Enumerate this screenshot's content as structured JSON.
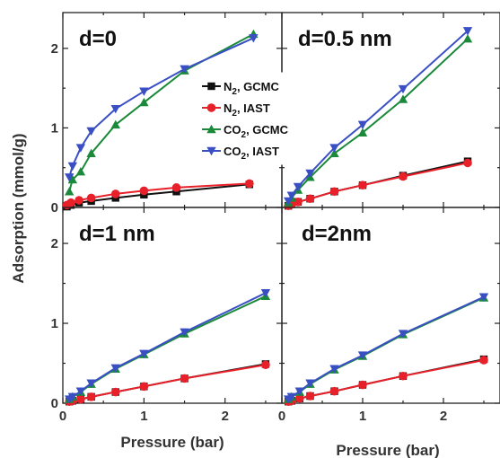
{
  "colors": {
    "n2_gcmc": "#111111",
    "n2_iast": "#e8202a",
    "co2_gcmc": "#1a8a3a",
    "co2_iast": "#3a4fc4"
  },
  "axes": {
    "xlabel": "Pressure (bar)",
    "ylabel": "Adsorption (mmol/g)",
    "x_ticks": [
      "0",
      "1",
      "2"
    ],
    "y_ticks": [
      "0",
      "1",
      "2"
    ]
  },
  "legend": {
    "entries": [
      {
        "species": "N",
        "sub": "2",
        "method": ", GCMC"
      },
      {
        "species": "N",
        "sub": "2",
        "method": ", IAST"
      },
      {
        "species": "CO",
        "sub": "2",
        "method": ", GCMC"
      },
      {
        "species": "CO",
        "sub": "2",
        "method": ", IAST"
      }
    ]
  },
  "chart_data": [
    {
      "type": "line",
      "panel_label": "d=0",
      "xlabel": "",
      "ylabel": "Adsorption (mmol/g)",
      "xlim": [
        0,
        2.7
      ],
      "ylim": [
        0,
        2.45
      ],
      "series": [
        {
          "name": "N2, GCMC",
          "marker": "square",
          "x": [
            0.05,
            0.1,
            0.2,
            0.35,
            0.65,
            1.0,
            1.4,
            2.3
          ],
          "y": [
            0.01,
            0.03,
            0.06,
            0.08,
            0.12,
            0.16,
            0.2,
            0.29
          ]
        },
        {
          "name": "N2, IAST",
          "marker": "circle",
          "x": [
            0.05,
            0.1,
            0.2,
            0.35,
            0.65,
            1.0,
            1.4,
            2.3
          ],
          "y": [
            0.03,
            0.06,
            0.09,
            0.12,
            0.17,
            0.21,
            0.25,
            0.3
          ]
        },
        {
          "name": "CO2, GCMC",
          "marker": "triangle-up",
          "x": [
            0.08,
            0.12,
            0.22,
            0.35,
            0.65,
            1.0,
            1.5,
            2.35
          ],
          "y": [
            0.2,
            0.35,
            0.45,
            0.68,
            1.04,
            1.32,
            1.72,
            2.18
          ]
        },
        {
          "name": "CO2, IAST",
          "marker": "triangle-down",
          "x": [
            0.08,
            0.12,
            0.22,
            0.35,
            0.65,
            1.0,
            1.5,
            2.35
          ],
          "y": [
            0.38,
            0.52,
            0.75,
            0.96,
            1.24,
            1.46,
            1.74,
            2.13
          ]
        }
      ]
    },
    {
      "type": "line",
      "panel_label": "d=0.5 nm",
      "xlabel": "",
      "ylabel": "",
      "xlim": [
        0,
        2.7
      ],
      "ylim": [
        0,
        2.45
      ],
      "series": [
        {
          "name": "N2, GCMC",
          "marker": "square",
          "x": [
            0.08,
            0.12,
            0.2,
            0.35,
            0.65,
            1.0,
            1.5,
            2.3
          ],
          "y": [
            0.02,
            0.04,
            0.07,
            0.11,
            0.2,
            0.28,
            0.4,
            0.58
          ]
        },
        {
          "name": "N2, IAST",
          "marker": "circle",
          "x": [
            0.08,
            0.12,
            0.2,
            0.35,
            0.65,
            1.0,
            1.5,
            2.3
          ],
          "y": [
            0.02,
            0.04,
            0.07,
            0.11,
            0.2,
            0.28,
            0.39,
            0.56
          ]
        },
        {
          "name": "CO2, GCMC",
          "marker": "triangle-up",
          "x": [
            0.08,
            0.12,
            0.2,
            0.35,
            0.65,
            1.0,
            1.5,
            2.3
          ],
          "y": [
            0.06,
            0.12,
            0.22,
            0.38,
            0.68,
            0.94,
            1.36,
            2.12
          ]
        },
        {
          "name": "CO2, IAST",
          "marker": "triangle-down",
          "x": [
            0.08,
            0.12,
            0.2,
            0.35,
            0.65,
            1.0,
            1.5,
            2.3
          ],
          "y": [
            0.08,
            0.15,
            0.26,
            0.43,
            0.75,
            1.04,
            1.49,
            2.22
          ]
        }
      ]
    },
    {
      "type": "line",
      "panel_label": "d=1 nm",
      "xlabel": "Pressure (bar)",
      "ylabel": "",
      "xlim": [
        0,
        2.7
      ],
      "ylim": [
        0,
        2.45
      ],
      "series": [
        {
          "name": "N2, GCMC",
          "marker": "square",
          "x": [
            0.08,
            0.12,
            0.22,
            0.35,
            0.65,
            1.0,
            1.5,
            2.5
          ],
          "y": [
            0.02,
            0.03,
            0.05,
            0.08,
            0.14,
            0.21,
            0.31,
            0.49
          ]
        },
        {
          "name": "N2, IAST",
          "marker": "circle",
          "x": [
            0.08,
            0.12,
            0.22,
            0.35,
            0.65,
            1.0,
            1.5,
            2.5
          ],
          "y": [
            0.02,
            0.03,
            0.05,
            0.08,
            0.14,
            0.21,
            0.31,
            0.48
          ]
        },
        {
          "name": "CO2, GCMC",
          "marker": "triangle-up",
          "x": [
            0.08,
            0.12,
            0.22,
            0.35,
            0.65,
            1.0,
            1.5,
            2.5
          ],
          "y": [
            0.05,
            0.08,
            0.14,
            0.24,
            0.43,
            0.61,
            0.87,
            1.34
          ]
        },
        {
          "name": "CO2, IAST",
          "marker": "triangle-down",
          "x": [
            0.08,
            0.12,
            0.22,
            0.35,
            0.65,
            1.0,
            1.5,
            2.5
          ],
          "y": [
            0.05,
            0.08,
            0.15,
            0.25,
            0.44,
            0.62,
            0.89,
            1.38
          ]
        }
      ]
    },
    {
      "type": "line",
      "panel_label": "d=2nm",
      "xlabel": "Pressure (bar)",
      "ylabel": "",
      "xlim": [
        0,
        2.7
      ],
      "ylim": [
        0,
        2.45
      ],
      "series": [
        {
          "name": "N2, GCMC",
          "marker": "square",
          "x": [
            0.08,
            0.12,
            0.22,
            0.35,
            0.65,
            1.0,
            1.5,
            2.5
          ],
          "y": [
            0.02,
            0.03,
            0.06,
            0.09,
            0.15,
            0.23,
            0.34,
            0.55
          ]
        },
        {
          "name": "N2, IAST",
          "marker": "circle",
          "x": [
            0.08,
            0.12,
            0.22,
            0.35,
            0.65,
            1.0,
            1.5,
            2.5
          ],
          "y": [
            0.02,
            0.03,
            0.06,
            0.09,
            0.15,
            0.23,
            0.34,
            0.54
          ]
        },
        {
          "name": "CO2, GCMC",
          "marker": "triangle-up",
          "x": [
            0.08,
            0.12,
            0.22,
            0.35,
            0.65,
            1.0,
            1.5,
            2.5
          ],
          "y": [
            0.05,
            0.08,
            0.14,
            0.24,
            0.42,
            0.59,
            0.86,
            1.32
          ]
        },
        {
          "name": "CO2, IAST",
          "marker": "triangle-down",
          "x": [
            0.08,
            0.12,
            0.22,
            0.35,
            0.65,
            1.0,
            1.5,
            2.5
          ],
          "y": [
            0.05,
            0.08,
            0.15,
            0.25,
            0.43,
            0.6,
            0.87,
            1.33
          ]
        }
      ]
    }
  ]
}
